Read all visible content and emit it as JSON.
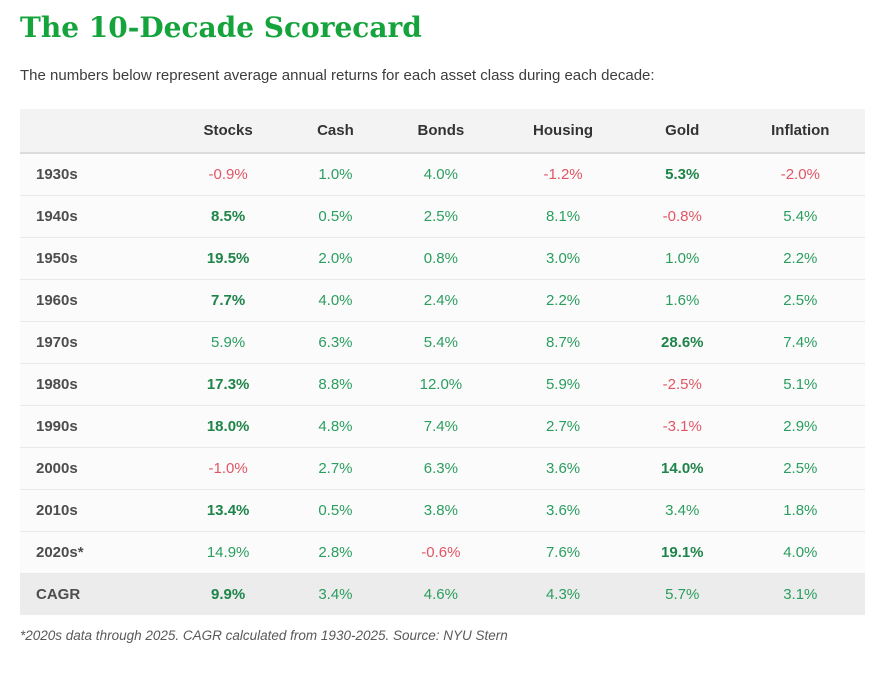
{
  "page": {
    "title": "The 10-Decade Scorecard",
    "subtitle": "The numbers below represent average annual returns for each asset class during each decade:",
    "footnote": "*2020s data through 2025. CAGR calculated from 1930-2025. Source: NYU Stern"
  },
  "colors": {
    "title_green": "#15a33c",
    "positive_value": "#2a9d5f",
    "positive_bold_value": "#1e8449",
    "negative_value": "#e15565",
    "header_background": "#f3f3f3",
    "row_background": "#fbfbfb",
    "cagr_row_background": "#ececec"
  },
  "chart_data": {
    "type": "table",
    "title": "The 10-Decade Scorecard",
    "columns": [
      "",
      "Stocks",
      "Cash",
      "Bonds",
      "Housing",
      "Gold",
      "Inflation"
    ],
    "value_unit": "percent average annual return",
    "rows": [
      {
        "label": "1930s",
        "values": [
          "-0.9%",
          "1.0%",
          "4.0%",
          "-1.2%",
          "5.3%",
          "-2.0%"
        ],
        "best_index": 4,
        "is_summary": false
      },
      {
        "label": "1940s",
        "values": [
          "8.5%",
          "0.5%",
          "2.5%",
          "8.1%",
          "-0.8%",
          "5.4%"
        ],
        "best_index": 0,
        "is_summary": false
      },
      {
        "label": "1950s",
        "values": [
          "19.5%",
          "2.0%",
          "0.8%",
          "3.0%",
          "1.0%",
          "2.2%"
        ],
        "best_index": 0,
        "is_summary": false
      },
      {
        "label": "1960s",
        "values": [
          "7.7%",
          "4.0%",
          "2.4%",
          "2.2%",
          "1.6%",
          "2.5%"
        ],
        "best_index": 0,
        "is_summary": false
      },
      {
        "label": "1970s",
        "values": [
          "5.9%",
          "6.3%",
          "5.4%",
          "8.7%",
          "28.6%",
          "7.4%"
        ],
        "best_index": 4,
        "is_summary": false
      },
      {
        "label": "1980s",
        "values": [
          "17.3%",
          "8.8%",
          "12.0%",
          "5.9%",
          "-2.5%",
          "5.1%"
        ],
        "best_index": 0,
        "is_summary": false
      },
      {
        "label": "1990s",
        "values": [
          "18.0%",
          "4.8%",
          "7.4%",
          "2.7%",
          "-3.1%",
          "2.9%"
        ],
        "best_index": 0,
        "is_summary": false
      },
      {
        "label": "2000s",
        "values": [
          "-1.0%",
          "2.7%",
          "6.3%",
          "3.6%",
          "14.0%",
          "2.5%"
        ],
        "best_index": 4,
        "is_summary": false
      },
      {
        "label": "2010s",
        "values": [
          "13.4%",
          "0.5%",
          "3.8%",
          "3.6%",
          "3.4%",
          "1.8%"
        ],
        "best_index": 0,
        "is_summary": false
      },
      {
        "label": "2020s*",
        "values": [
          "14.9%",
          "2.8%",
          "-0.6%",
          "7.6%",
          "19.1%",
          "4.0%"
        ],
        "best_index": 4,
        "is_summary": false
      },
      {
        "label": "CAGR",
        "values": [
          "9.9%",
          "3.4%",
          "4.6%",
          "4.3%",
          "5.7%",
          "3.1%"
        ],
        "best_index": 0,
        "is_summary": true
      }
    ]
  }
}
